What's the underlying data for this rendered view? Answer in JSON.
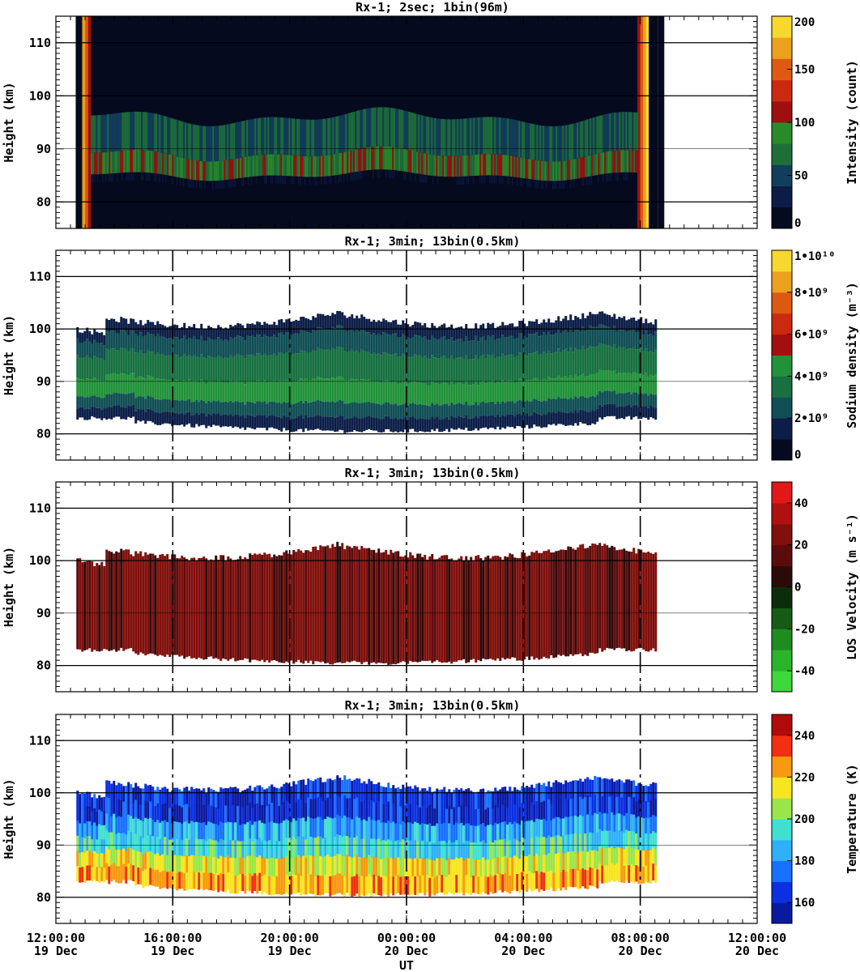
{
  "chart_data": [
    {
      "type": "heatmap",
      "title": "Rx-1;  2sec; 1bin(96m)",
      "ylabel": "Height (km)",
      "ylim": [
        75,
        115
      ],
      "yticks": [
        80,
        90,
        100,
        110
      ],
      "colorbar": {
        "label": "Intensity (count)",
        "range": [
          0,
          200
        ],
        "ticks": [
          "0",
          "50",
          "100",
          "150",
          "200"
        ],
        "tick_values": [
          0,
          50,
          100,
          150,
          200
        ],
        "colors": [
          "#050a1e",
          "#0c1c46",
          "#123e5c",
          "#1e6e3a",
          "#2a8a2a",
          "#9e1010",
          "#cc2a10",
          "#de5a10",
          "#eca020",
          "#f6d830"
        ]
      },
      "layer": {
        "x_start": 13.2,
        "x_end": 7.9,
        "bottom_km": 85,
        "top_km": 96,
        "peak_km": 89
      },
      "dark_stripes_x": [
        12.9,
        8.6
      ]
    },
    {
      "type": "heatmap",
      "title": "Rx-1; 3min; 13bin(0.5km)",
      "ylabel": "Height (km)",
      "ylim": [
        75,
        115
      ],
      "yticks": [
        80,
        90,
        100,
        110
      ],
      "colorbar": {
        "label": "Sodium density (m⁻³)",
        "range": [
          0,
          10000000000
        ],
        "ticks": [
          "0",
          "2•10⁹",
          "4•10⁹",
          "6•10⁹",
          "8•10⁹",
          "1•10¹⁰"
        ],
        "tick_values": [
          0,
          2000000000,
          4000000000,
          6000000000,
          8000000000,
          10000000000
        ],
        "colors": [
          "#060a20",
          "#0c1e48",
          "#104e54",
          "#187040",
          "#22923a",
          "#a01010",
          "#cc2a10",
          "#dc5a10",
          "#eca020",
          "#f6d830"
        ]
      },
      "coverage": {
        "x_start": 12.7,
        "x_end": 8.5,
        "bottom_km": 83,
        "top_km": 103
      }
    },
    {
      "type": "heatmap",
      "title": "Rx-1; 3min; 13bin(0.5km)",
      "ylabel": "Height (km)",
      "ylim": [
        75,
        115
      ],
      "yticks": [
        80,
        90,
        100,
        110
      ],
      "colorbar": {
        "label": "LOS Velocity (m s⁻¹)",
        "range": [
          -50,
          50
        ],
        "ticks": [
          "-40",
          "-20",
          "0",
          "20",
          "40"
        ],
        "tick_values": [
          -40,
          -20,
          0,
          20,
          40
        ],
        "colors": [
          "#3cd83c",
          "#2ab42a",
          "#1e8c1e",
          "#165a16",
          "#0c2c0c",
          "#2c0a0a",
          "#5a0c0c",
          "#80100c",
          "#b01010",
          "#e01818"
        ]
      },
      "coverage": {
        "x_start": 12.7,
        "x_end": 8.5,
        "bottom_km": 83,
        "top_km": 103
      }
    },
    {
      "type": "heatmap",
      "title": "Rx-1; 3min; 13bin(0.5km)",
      "ylabel": "Height (km)",
      "xlabel": "UT",
      "ylim": [
        75,
        115
      ],
      "yticks": [
        80,
        90,
        100,
        110
      ],
      "colorbar": {
        "label": "Temperature (K)",
        "range": [
          150,
          250
        ],
        "ticks": [
          "160",
          "180",
          "200",
          "220",
          "240"
        ],
        "tick_values": [
          160,
          180,
          200,
          220,
          240
        ],
        "colors": [
          "#0a1aa0",
          "#0a30e0",
          "#1870ff",
          "#30b0f8",
          "#40e0d0",
          "#9ae64a",
          "#f6e620",
          "#f89a10",
          "#f03010",
          "#b00a0a"
        ]
      },
      "coverage": {
        "x_start": 12.7,
        "x_end": 8.5,
        "bottom_km": 83,
        "top_km": 103
      }
    }
  ],
  "x_axis": {
    "label": "UT",
    "range_hours": [
      12,
      36
    ],
    "tick_hours": [
      12,
      16,
      20,
      24,
      28,
      32,
      36
    ],
    "tick_labels": [
      {
        "time": "12:00:00",
        "date": "19 Dec"
      },
      {
        "time": "16:00:00",
        "date": "19 Dec"
      },
      {
        "time": "20:00:00",
        "date": "19 Dec"
      },
      {
        "time": "00:00:00",
        "date": "20 Dec"
      },
      {
        "time": "04:00:00",
        "date": "20 Dec"
      },
      {
        "time": "08:00:00",
        "date": "20 Dec"
      },
      {
        "time": "12:00:00",
        "date": "20 Dec"
      }
    ]
  }
}
